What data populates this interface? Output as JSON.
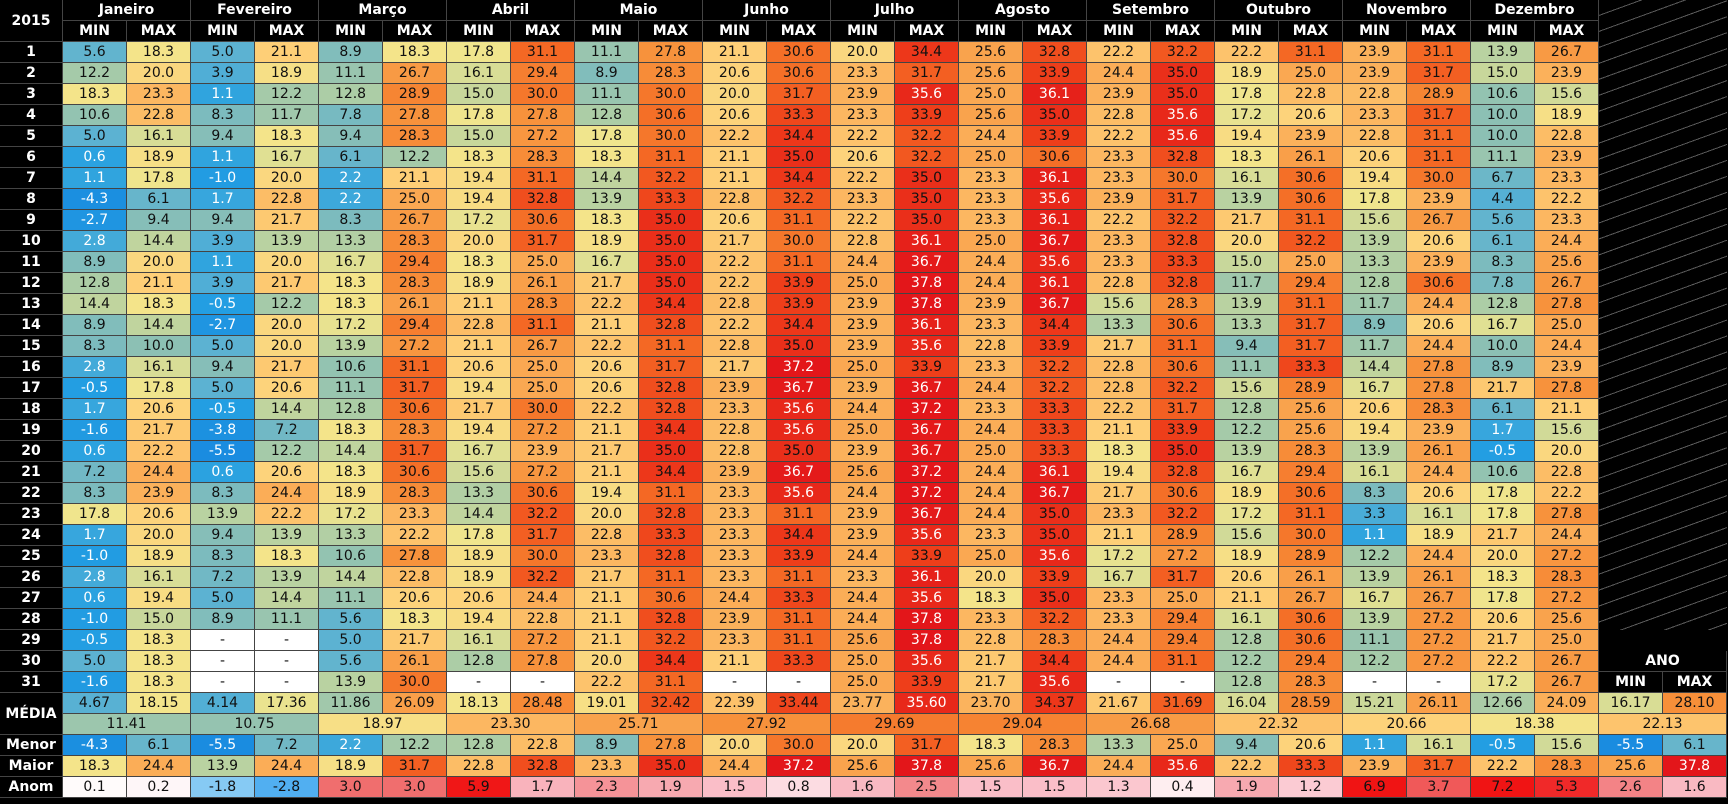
{
  "year": "2015",
  "months": [
    "Janeiro",
    "Fevereiro",
    "Março",
    "Abril",
    "Maio",
    "Junho",
    "Julho",
    "Agosto",
    "Setembro",
    "Outubro",
    "Novembro",
    "Dezembro"
  ],
  "col_labels": [
    "MIN",
    "MAX"
  ],
  "ano_label": "ANO",
  "days": [
    "1",
    "2",
    "3",
    "4",
    "5",
    "6",
    "7",
    "8",
    "9",
    "10",
    "11",
    "12",
    "13",
    "14",
    "15",
    "16",
    "17",
    "18",
    "19",
    "20",
    "21",
    "22",
    "23",
    "24",
    "25",
    "26",
    "27",
    "28",
    "29",
    "30",
    "31"
  ],
  "rows": [
    [
      "5.6",
      "18.3",
      "5.0",
      "21.1",
      "8.9",
      "18.3",
      "17.8",
      "31.1",
      "11.1",
      "27.8",
      "21.1",
      "30.6",
      "20.0",
      "34.4",
      "25.6",
      "32.8",
      "22.2",
      "32.2",
      "22.2",
      "31.1",
      "23.9",
      "31.1",
      "13.9",
      "26.7"
    ],
    [
      "12.2",
      "20.0",
      "3.9",
      "18.9",
      "11.1",
      "26.7",
      "16.1",
      "29.4",
      "8.9",
      "28.3",
      "20.6",
      "30.6",
      "23.3",
      "31.7",
      "25.6",
      "33.9",
      "24.4",
      "35.0",
      "18.9",
      "25.0",
      "23.9",
      "31.7",
      "15.0",
      "23.9"
    ],
    [
      "18.3",
      "23.3",
      "1.1",
      "12.2",
      "12.8",
      "28.9",
      "15.0",
      "30.0",
      "11.1",
      "30.0",
      "20.0",
      "31.7",
      "23.9",
      "35.6",
      "25.0",
      "36.1",
      "23.9",
      "35.0",
      "17.8",
      "22.8",
      "22.8",
      "28.9",
      "10.6",
      "15.6"
    ],
    [
      "10.6",
      "22.8",
      "8.3",
      "11.7",
      "7.8",
      "27.8",
      "17.8",
      "27.8",
      "12.8",
      "30.6",
      "20.6",
      "33.3",
      "23.3",
      "33.9",
      "25.6",
      "35.0",
      "22.8",
      "35.6",
      "17.2",
      "20.6",
      "23.3",
      "31.7",
      "10.0",
      "18.9"
    ],
    [
      "5.0",
      "16.1",
      "9.4",
      "18.3",
      "9.4",
      "28.3",
      "15.0",
      "27.2",
      "17.8",
      "30.0",
      "22.2",
      "34.4",
      "22.2",
      "32.2",
      "24.4",
      "33.9",
      "22.2",
      "35.6",
      "19.4",
      "23.9",
      "22.8",
      "31.1",
      "10.0",
      "22.8"
    ],
    [
      "0.6",
      "18.9",
      "1.1",
      "16.7",
      "6.1",
      "12.2",
      "18.3",
      "28.3",
      "18.3",
      "31.1",
      "21.1",
      "35.0",
      "20.6",
      "32.2",
      "25.0",
      "30.6",
      "23.3",
      "32.8",
      "18.3",
      "26.1",
      "20.6",
      "31.1",
      "11.1",
      "23.9"
    ],
    [
      "1.1",
      "17.8",
      "-1.0",
      "20.0",
      "2.2",
      "21.1",
      "19.4",
      "31.1",
      "14.4",
      "32.2",
      "21.1",
      "34.4",
      "22.2",
      "35.0",
      "23.3",
      "36.1",
      "23.3",
      "30.0",
      "16.1",
      "30.6",
      "19.4",
      "30.0",
      "6.7",
      "23.3"
    ],
    [
      "-4.3",
      "6.1",
      "1.7",
      "22.8",
      "2.2",
      "25.0",
      "19.4",
      "32.8",
      "13.9",
      "33.3",
      "22.8",
      "32.2",
      "23.3",
      "35.0",
      "23.3",
      "35.6",
      "23.9",
      "31.7",
      "13.9",
      "30.6",
      "17.8",
      "23.9",
      "4.4",
      "22.2"
    ],
    [
      "-2.7",
      "9.4",
      "9.4",
      "21.7",
      "8.3",
      "26.7",
      "17.2",
      "30.6",
      "18.3",
      "35.0",
      "20.6",
      "31.1",
      "22.2",
      "35.0",
      "23.3",
      "36.1",
      "22.2",
      "32.2",
      "21.7",
      "31.1",
      "15.6",
      "26.7",
      "5.6",
      "23.3"
    ],
    [
      "2.8",
      "14.4",
      "3.9",
      "13.9",
      "13.3",
      "28.3",
      "20.0",
      "31.7",
      "18.9",
      "35.0",
      "21.7",
      "30.0",
      "22.8",
      "36.1",
      "25.0",
      "36.7",
      "23.3",
      "32.8",
      "20.0",
      "32.2",
      "13.9",
      "20.6",
      "6.1",
      "24.4"
    ],
    [
      "8.9",
      "20.0",
      "1.1",
      "20.0",
      "16.7",
      "29.4",
      "18.3",
      "25.0",
      "16.7",
      "35.0",
      "22.2",
      "31.1",
      "24.4",
      "36.7",
      "24.4",
      "35.6",
      "23.3",
      "33.3",
      "15.0",
      "25.0",
      "13.3",
      "23.9",
      "8.3",
      "25.6"
    ],
    [
      "12.8",
      "21.1",
      "3.9",
      "21.7",
      "18.3",
      "28.3",
      "18.9",
      "26.1",
      "21.7",
      "35.0",
      "22.2",
      "33.9",
      "25.0",
      "37.8",
      "24.4",
      "36.1",
      "22.8",
      "32.8",
      "11.7",
      "29.4",
      "12.8",
      "30.6",
      "7.8",
      "26.7"
    ],
    [
      "14.4",
      "18.3",
      "-0.5",
      "12.2",
      "18.3",
      "26.1",
      "21.1",
      "28.3",
      "22.2",
      "34.4",
      "22.8",
      "33.9",
      "23.9",
      "37.8",
      "23.9",
      "36.7",
      "15.6",
      "28.3",
      "13.9",
      "31.1",
      "11.7",
      "24.4",
      "12.8",
      "27.8"
    ],
    [
      "8.9",
      "14.4",
      "-2.7",
      "20.0",
      "17.2",
      "29.4",
      "22.8",
      "31.1",
      "21.1",
      "32.8",
      "22.2",
      "34.4",
      "23.9",
      "36.1",
      "23.3",
      "34.4",
      "13.3",
      "30.6",
      "13.3",
      "31.7",
      "8.9",
      "20.6",
      "16.7",
      "25.0"
    ],
    [
      "8.3",
      "10.0",
      "5.0",
      "20.0",
      "13.9",
      "27.2",
      "21.1",
      "26.7",
      "22.2",
      "31.1",
      "22.8",
      "35.0",
      "23.9",
      "35.6",
      "22.8",
      "33.9",
      "21.7",
      "31.1",
      "9.4",
      "31.7",
      "11.7",
      "24.4",
      "10.0",
      "24.4"
    ],
    [
      "2.8",
      "16.1",
      "9.4",
      "21.7",
      "10.6",
      "31.1",
      "20.6",
      "25.0",
      "20.6",
      "31.7",
      "21.7",
      "37.2",
      "25.0",
      "33.9",
      "23.3",
      "32.2",
      "22.8",
      "30.6",
      "11.1",
      "33.3",
      "14.4",
      "27.8",
      "8.9",
      "23.9"
    ],
    [
      "-0.5",
      "17.8",
      "5.0",
      "20.6",
      "11.1",
      "31.7",
      "19.4",
      "25.0",
      "20.6",
      "32.8",
      "23.9",
      "36.7",
      "23.9",
      "36.7",
      "24.4",
      "32.2",
      "22.8",
      "32.2",
      "15.6",
      "28.9",
      "16.7",
      "27.8",
      "21.7",
      "27.8"
    ],
    [
      "1.7",
      "20.6",
      "-0.5",
      "14.4",
      "12.8",
      "30.6",
      "21.7",
      "30.0",
      "22.2",
      "32.8",
      "23.3",
      "35.6",
      "24.4",
      "37.2",
      "23.3",
      "33.3",
      "22.2",
      "31.7",
      "12.8",
      "25.6",
      "20.6",
      "28.3",
      "6.1",
      "21.1"
    ],
    [
      "-1.6",
      "21.7",
      "-3.8",
      "7.2",
      "18.3",
      "28.3",
      "19.4",
      "27.2",
      "21.1",
      "34.4",
      "22.8",
      "35.6",
      "25.0",
      "36.7",
      "24.4",
      "33.3",
      "21.1",
      "33.9",
      "12.2",
      "25.6",
      "19.4",
      "23.9",
      "1.7",
      "15.6"
    ],
    [
      "0.6",
      "22.2",
      "-5.5",
      "12.2",
      "14.4",
      "31.7",
      "16.7",
      "23.9",
      "21.7",
      "35.0",
      "22.8",
      "35.0",
      "23.9",
      "36.7",
      "25.0",
      "33.3",
      "18.3",
      "35.0",
      "13.9",
      "28.3",
      "13.9",
      "26.1",
      "-0.5",
      "20.0"
    ],
    [
      "7.2",
      "24.4",
      "0.6",
      "20.6",
      "18.3",
      "30.6",
      "15.6",
      "27.2",
      "21.1",
      "34.4",
      "23.9",
      "36.7",
      "25.6",
      "37.2",
      "24.4",
      "36.1",
      "19.4",
      "32.8",
      "16.7",
      "29.4",
      "16.1",
      "24.4",
      "10.6",
      "22.8"
    ],
    [
      "8.3",
      "23.9",
      "8.3",
      "24.4",
      "18.9",
      "28.3",
      "13.3",
      "30.6",
      "19.4",
      "31.1",
      "23.3",
      "35.6",
      "24.4",
      "37.2",
      "24.4",
      "36.7",
      "21.7",
      "30.6",
      "18.9",
      "30.6",
      "8.3",
      "20.6",
      "17.8",
      "22.2"
    ],
    [
      "17.8",
      "20.6",
      "13.9",
      "22.2",
      "17.2",
      "23.3",
      "14.4",
      "32.2",
      "20.0",
      "32.8",
      "23.3",
      "31.1",
      "23.9",
      "36.7",
      "24.4",
      "35.0",
      "23.3",
      "32.2",
      "17.2",
      "31.1",
      "3.3",
      "16.1",
      "17.8",
      "27.8"
    ],
    [
      "1.7",
      "20.0",
      "9.4",
      "13.9",
      "13.3",
      "22.2",
      "17.8",
      "31.7",
      "22.8",
      "33.3",
      "23.3",
      "34.4",
      "23.9",
      "35.6",
      "23.3",
      "35.0",
      "21.1",
      "28.9",
      "15.6",
      "30.0",
      "1.1",
      "18.9",
      "21.7",
      "24.4"
    ],
    [
      "-1.0",
      "18.9",
      "8.3",
      "18.3",
      "10.6",
      "27.8",
      "18.9",
      "30.0",
      "23.3",
      "32.8",
      "23.3",
      "33.9",
      "24.4",
      "33.9",
      "25.0",
      "35.6",
      "17.2",
      "27.2",
      "18.9",
      "28.9",
      "12.2",
      "24.4",
      "20.0",
      "27.2"
    ],
    [
      "2.8",
      "16.1",
      "7.2",
      "13.9",
      "14.4",
      "22.8",
      "18.9",
      "32.2",
      "21.7",
      "31.1",
      "23.3",
      "31.1",
      "23.3",
      "36.1",
      "20.0",
      "33.9",
      "16.7",
      "31.7",
      "20.6",
      "26.1",
      "13.9",
      "26.1",
      "18.3",
      "28.3"
    ],
    [
      "0.6",
      "19.4",
      "5.0",
      "14.4",
      "11.1",
      "20.6",
      "20.6",
      "24.4",
      "21.1",
      "30.6",
      "24.4",
      "33.3",
      "24.4",
      "35.6",
      "18.3",
      "35.0",
      "23.3",
      "25.0",
      "21.1",
      "26.7",
      "16.7",
      "26.7",
      "17.8",
      "27.2"
    ],
    [
      "-1.0",
      "15.0",
      "8.9",
      "11.1",
      "5.6",
      "18.3",
      "19.4",
      "22.8",
      "21.1",
      "32.8",
      "23.9",
      "31.1",
      "24.4",
      "37.8",
      "23.3",
      "32.2",
      "23.3",
      "29.4",
      "16.1",
      "30.6",
      "13.9",
      "27.2",
      "20.6",
      "25.6"
    ],
    [
      "-0.5",
      "18.3",
      "-",
      "-",
      "5.0",
      "21.7",
      "16.1",
      "27.2",
      "21.1",
      "32.2",
      "23.3",
      "31.1",
      "25.6",
      "37.8",
      "22.8",
      "28.3",
      "24.4",
      "29.4",
      "12.8",
      "30.6",
      "11.1",
      "27.2",
      "21.7",
      "25.0"
    ],
    [
      "5.0",
      "18.3",
      "-",
      "-",
      "5.6",
      "26.1",
      "12.8",
      "27.8",
      "20.0",
      "34.4",
      "21.1",
      "33.3",
      "25.0",
      "35.6",
      "21.7",
      "34.4",
      "24.4",
      "31.1",
      "12.2",
      "29.4",
      "12.2",
      "27.2",
      "22.2",
      "26.7"
    ],
    [
      "-1.6",
      "18.3",
      "-",
      "-",
      "13.9",
      "30.0",
      "-",
      "-",
      "22.2",
      "31.1",
      "-",
      "-",
      "25.0",
      "33.9",
      "21.7",
      "35.6",
      "-",
      "-",
      "12.8",
      "28.3",
      "-",
      "-",
      "17.2",
      "26.7"
    ]
  ],
  "media": {
    "label": "MÉDIA",
    "values": [
      "4.67",
      "18.15",
      "4.14",
      "17.36",
      "11.86",
      "26.09",
      "18.13",
      "28.48",
      "19.01",
      "32.42",
      "22.39",
      "33.44",
      "23.77",
      "35.60",
      "23.70",
      "34.37",
      "21.67",
      "31.69",
      "16.04",
      "28.59",
      "15.21",
      "26.11",
      "12.66",
      "24.09"
    ],
    "ano": [
      "16.17",
      "28.10"
    ],
    "avg": [
      "11.41",
      "10.75",
      "18.97",
      "23.30",
      "25.71",
      "27.92",
      "29.69",
      "29.04",
      "26.68",
      "22.32",
      "20.66",
      "18.38"
    ],
    "avg_ano": "22.13"
  },
  "summary_rows": [
    {
      "label": "Menor",
      "kind": "temp",
      "values": [
        "-4.3",
        "6.1",
        "-5.5",
        "7.2",
        "2.2",
        "12.2",
        "12.8",
        "22.8",
        "8.9",
        "27.8",
        "20.0",
        "30.0",
        "20.0",
        "31.7",
        "18.3",
        "28.3",
        "13.3",
        "25.0",
        "9.4",
        "20.6",
        "1.1",
        "16.1",
        "-0.5",
        "15.6"
      ],
      "ano": [
        "-5.5",
        "6.1"
      ]
    },
    {
      "label": "Maior",
      "kind": "temp",
      "values": [
        "18.3",
        "24.4",
        "13.9",
        "24.4",
        "18.9",
        "31.7",
        "22.8",
        "32.8",
        "23.3",
        "35.0",
        "24.4",
        "37.2",
        "25.6",
        "37.8",
        "25.6",
        "36.7",
        "24.4",
        "35.6",
        "22.2",
        "33.3",
        "23.9",
        "31.7",
        "22.2",
        "28.3"
      ],
      "ano": [
        "25.6",
        "37.8"
      ]
    },
    {
      "label": "Anom",
      "kind": "anomaly",
      "values": [
        "0.1",
        "0.2",
        "-1.8",
        "-2.8",
        "3.0",
        "3.0",
        "5.9",
        "1.7",
        "2.3",
        "1.9",
        "1.5",
        "0.8",
        "1.6",
        "2.5",
        "1.5",
        "1.5",
        "1.3",
        "0.4",
        "1.9",
        "1.2",
        "6.9",
        "3.7",
        "7.2",
        "5.3"
      ],
      "ano": [
        "2.6",
        "1.6"
      ]
    }
  ]
}
